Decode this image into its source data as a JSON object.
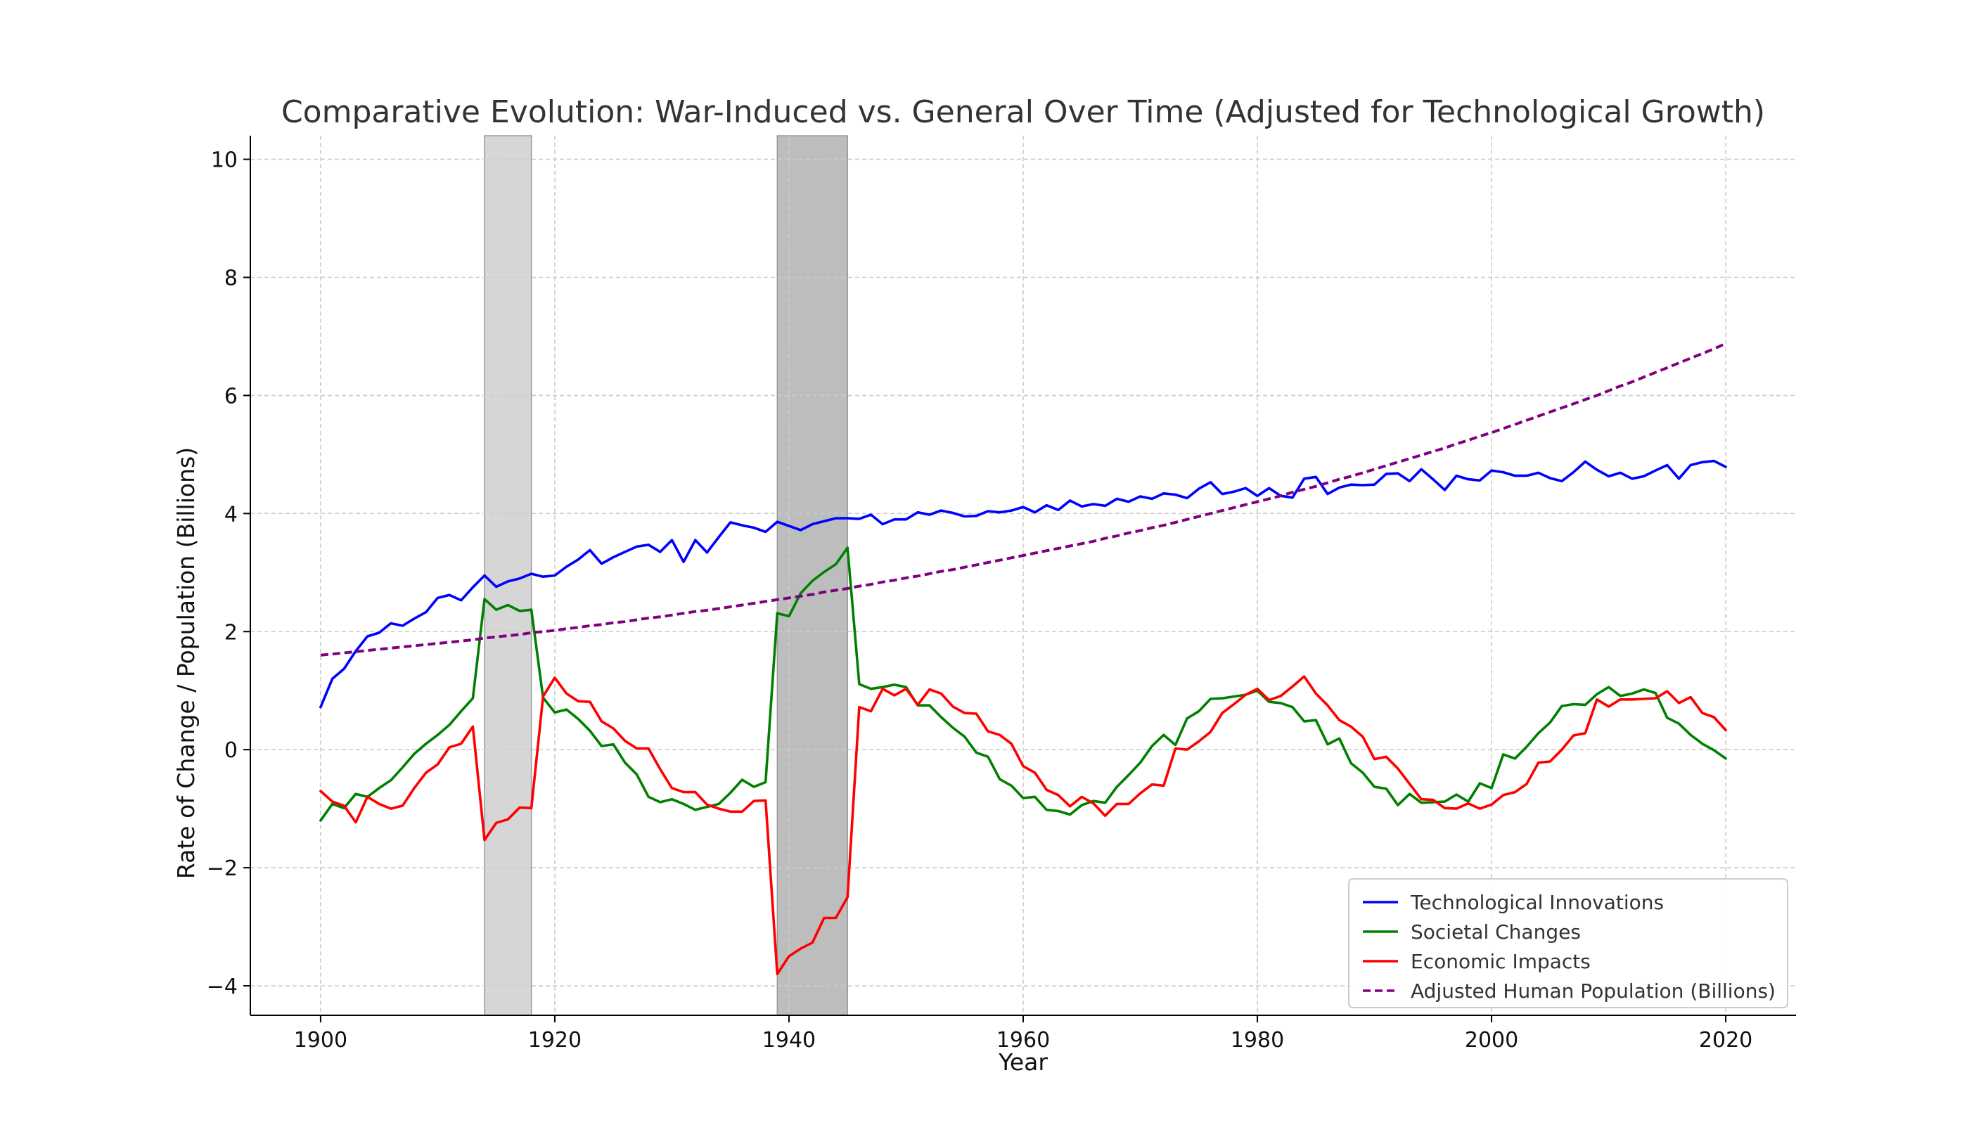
{
  "chart_data": {
    "type": "line",
    "title": "Comparative Evolution: War-Induced vs. General Over Time (Adjusted for Technological Growth)",
    "xlabel": "Year",
    "ylabel": "Rate of Change / Population (Billions)",
    "xlim": [
      1894,
      2026
    ],
    "ylim": [
      -4.5,
      10.4
    ],
    "xticks": [
      1900,
      1920,
      1940,
      1960,
      1980,
      2000,
      2020
    ],
    "yticks": [
      -4,
      -2,
      0,
      2,
      4,
      6,
      8,
      10
    ],
    "xtick_labels": [
      "1900",
      "1920",
      "1940",
      "1960",
      "1980",
      "2000",
      "2020"
    ],
    "ytick_labels": [
      "−4",
      "−2",
      "0",
      "2",
      "4",
      "6",
      "8",
      "10"
    ],
    "grid": true,
    "legend_position": "lower-right",
    "shaded_regions": [
      {
        "x_start": 1914,
        "x_end": 1918,
        "color": "#d6d6d6"
      },
      {
        "x_start": 1939,
        "x_end": 1945,
        "color": "#bdbdbd"
      }
    ],
    "x_start": 1900,
    "x_end": 2020,
    "series": [
      {
        "name": "Technological Innovations",
        "color": "#0000ff",
        "style": "solid",
        "values": [
          0.72,
          1.2,
          1.37,
          1.67,
          1.92,
          1.98,
          2.14,
          2.1,
          2.22,
          2.33,
          2.57,
          2.62,
          2.53,
          2.75,
          2.95,
          2.76,
          2.85,
          2.9,
          2.98,
          2.93,
          2.95,
          3.1,
          3.22,
          3.38,
          3.15,
          3.26,
          3.35,
          3.44,
          3.47,
          3.35,
          3.55,
          3.18,
          3.55,
          3.34,
          3.6,
          3.85,
          3.8,
          3.76,
          3.69,
          3.86,
          3.79,
          3.72,
          3.82,
          3.87,
          3.92,
          3.92,
          3.91,
          3.98,
          3.82,
          3.9,
          3.9,
          4.02,
          3.98,
          4.05,
          4.01,
          3.95,
          3.96,
          4.04,
          4.02,
          4.05,
          4.11,
          4.02,
          4.14,
          4.06,
          4.22,
          4.12,
          4.16,
          4.13,
          4.25,
          4.2,
          4.29,
          4.25,
          4.34,
          4.32,
          4.26,
          4.42,
          4.53,
          4.33,
          4.37,
          4.43,
          4.3,
          4.43,
          4.3,
          4.27,
          4.59,
          4.62,
          4.33,
          4.44,
          4.49,
          4.48,
          4.49,
          4.67,
          4.68,
          4.55,
          4.75,
          4.58,
          4.4,
          4.64,
          4.58,
          4.56,
          4.73,
          4.7,
          4.64,
          4.64,
          4.69,
          4.6,
          4.55,
          4.7,
          4.88,
          4.74,
          4.63,
          4.69,
          4.59,
          4.63,
          4.73,
          4.82,
          4.59,
          4.82,
          4.87,
          4.89,
          4.79
        ]
      },
      {
        "name": "Societal Changes",
        "color": "#008000",
        "style": "solid",
        "values": [
          -1.2,
          -0.92,
          -0.99,
          -0.75,
          -0.8,
          -0.65,
          -0.52,
          -0.3,
          -0.07,
          0.1,
          0.25,
          0.42,
          0.65,
          0.87,
          2.55,
          2.37,
          2.45,
          2.35,
          2.37,
          0.88,
          0.63,
          0.68,
          0.52,
          0.32,
          0.06,
          0.09,
          -0.22,
          -0.42,
          -0.8,
          -0.89,
          -0.84,
          -0.92,
          -1.02,
          -0.97,
          -0.92,
          -0.73,
          -0.51,
          -0.63,
          -0.55,
          2.31,
          2.26,
          2.65,
          2.86,
          3.01,
          3.14,
          3.42,
          1.11,
          1.03,
          1.06,
          1.1,
          1.06,
          0.75,
          0.75,
          0.55,
          0.37,
          0.22,
          -0.05,
          -0.12,
          -0.5,
          -0.61,
          -0.82,
          -0.8,
          -1.02,
          -1.04,
          -1.1,
          -0.94,
          -0.87,
          -0.9,
          -0.63,
          -0.43,
          -0.22,
          0.06,
          0.25,
          0.08,
          0.53,
          0.65,
          0.86,
          0.87,
          0.9,
          0.93,
          1.0,
          0.81,
          0.79,
          0.72,
          0.48,
          0.5,
          0.09,
          0.19,
          -0.23,
          -0.39,
          -0.63,
          -0.66,
          -0.94,
          -0.75,
          -0.9,
          -0.89,
          -0.88,
          -0.76,
          -0.88,
          -0.57,
          -0.65,
          -0.08,
          -0.15,
          0.05,
          0.28,
          0.46,
          0.74,
          0.77,
          0.76,
          0.94,
          1.06,
          0.91,
          0.95,
          1.02,
          0.96,
          0.54,
          0.44,
          0.25,
          0.1,
          -0.01,
          -0.15
        ]
      },
      {
        "name": "Economic Impacts",
        "color": "#ff0000",
        "style": "solid",
        "values": [
          -0.7,
          -0.88,
          -0.95,
          -1.23,
          -0.8,
          -0.92,
          -1.0,
          -0.95,
          -0.65,
          -0.39,
          -0.25,
          0.04,
          0.1,
          0.39,
          -1.53,
          -1.24,
          -1.18,
          -0.98,
          -0.99,
          0.9,
          1.22,
          0.95,
          0.82,
          0.81,
          0.48,
          0.36,
          0.15,
          0.02,
          0.02,
          -0.33,
          -0.65,
          -0.72,
          -0.72,
          -0.93,
          -1.0,
          -1.05,
          -1.05,
          -0.87,
          -0.86,
          -3.8,
          -3.5,
          -3.37,
          -3.27,
          -2.85,
          -2.85,
          -2.5,
          0.72,
          0.65,
          1.03,
          0.92,
          1.03,
          0.76,
          1.02,
          0.95,
          0.73,
          0.62,
          0.61,
          0.31,
          0.25,
          0.1,
          -0.28,
          -0.39,
          -0.68,
          -0.77,
          -0.96,
          -0.8,
          -0.91,
          -1.12,
          -0.92,
          -0.92,
          -0.74,
          -0.59,
          -0.61,
          0.02,
          0.0,
          0.14,
          0.3,
          0.62,
          0.77,
          0.93,
          1.03,
          0.84,
          0.91,
          1.07,
          1.24,
          0.95,
          0.75,
          0.5,
          0.39,
          0.22,
          -0.16,
          -0.12,
          -0.32,
          -0.58,
          -0.84,
          -0.85,
          -0.99,
          -1.0,
          -0.91,
          -1.0,
          -0.93,
          -0.77,
          -0.72,
          -0.58,
          -0.22,
          -0.2,
          0.0,
          0.24,
          0.28,
          0.85,
          0.73,
          0.85,
          0.85,
          0.86,
          0.87,
          0.99,
          0.79,
          0.89,
          0.62,
          0.55,
          0.33
        ]
      },
      {
        "name": "Adjusted Human Population (Billions)",
        "color": "#800080",
        "style": "dashed",
        "values": [
          1.6,
          1.62,
          1.64,
          1.66,
          1.68,
          1.7,
          1.72,
          1.74,
          1.76,
          1.78,
          1.8,
          1.82,
          1.84,
          1.86,
          1.89,
          1.91,
          1.93,
          1.95,
          1.98,
          2.0,
          2.02,
          2.05,
          2.07,
          2.1,
          2.12,
          2.15,
          2.17,
          2.2,
          2.23,
          2.25,
          2.28,
          2.31,
          2.34,
          2.36,
          2.39,
          2.42,
          2.45,
          2.48,
          2.51,
          2.54,
          2.57,
          2.6,
          2.63,
          2.67,
          2.7,
          2.73,
          2.77,
          2.8,
          2.84,
          2.87,
          2.91,
          2.94,
          2.98,
          3.02,
          3.05,
          3.09,
          3.13,
          3.17,
          3.21,
          3.25,
          3.29,
          3.33,
          3.37,
          3.41,
          3.45,
          3.49,
          3.53,
          3.58,
          3.62,
          3.67,
          3.71,
          3.76,
          3.8,
          3.85,
          3.9,
          3.95,
          4.0,
          4.05,
          4.1,
          4.15,
          4.2,
          4.25,
          4.3,
          4.36,
          4.41,
          4.46,
          4.52,
          4.58,
          4.63,
          4.69,
          4.75,
          4.81,
          4.87,
          4.93,
          4.99,
          5.05,
          5.11,
          5.18,
          5.24,
          5.31,
          5.37,
          5.44,
          5.51,
          5.58,
          5.65,
          5.72,
          5.79,
          5.86,
          5.93,
          6.0,
          6.08,
          6.16,
          6.23,
          6.31,
          6.39,
          6.47,
          6.55,
          6.63,
          6.71,
          6.79,
          6.88
        ]
      }
    ]
  }
}
